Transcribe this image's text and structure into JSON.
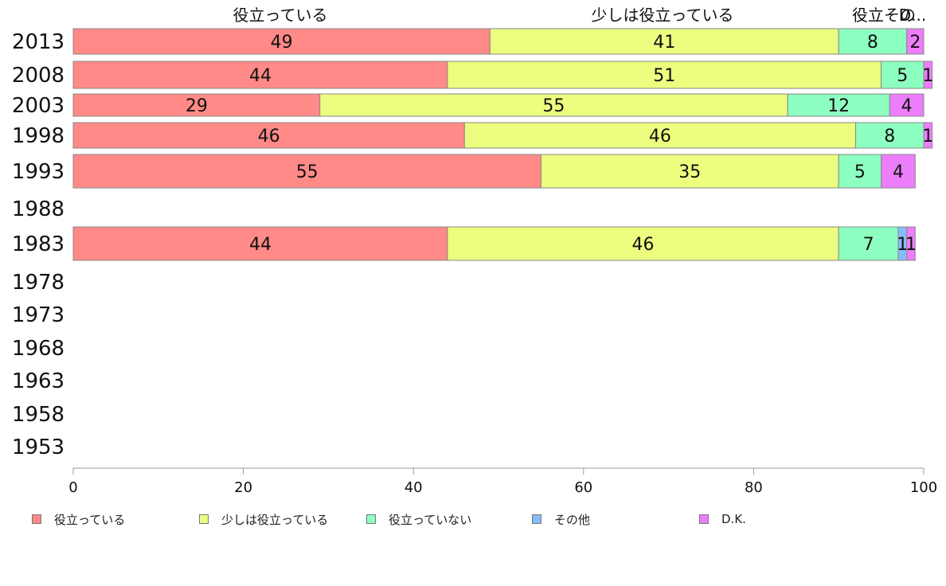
{
  "chart_data": {
    "type": "bar",
    "orientation": "horizontal",
    "stacked": true,
    "categories": [
      "2013",
      "2008",
      "2003",
      "1998",
      "1993",
      "1988",
      "1983",
      "1978",
      "1973",
      "1968",
      "1963",
      "1958",
      "1953"
    ],
    "series": [
      {
        "name": "役立っている",
        "color": "#ff8a87",
        "values": [
          49,
          44,
          29,
          46,
          55,
          null,
          44,
          null,
          null,
          null,
          null,
          null,
          null
        ]
      },
      {
        "name": "少しは役立っている",
        "color": "#ecfd7f",
        "values": [
          41,
          51,
          55,
          46,
          35,
          null,
          46,
          null,
          null,
          null,
          null,
          null,
          null
        ]
      },
      {
        "name": "役立っていない",
        "color": "#8dffc0",
        "values": [
          8,
          5,
          12,
          8,
          5,
          null,
          7,
          null,
          null,
          null,
          null,
          null,
          null
        ]
      },
      {
        "name": "その他",
        "color": "#87bcfb",
        "values": [
          0,
          0,
          0,
          0,
          0,
          null,
          1,
          null,
          null,
          null,
          null,
          null,
          null
        ]
      },
      {
        "name": "D.K.",
        "color": "#ec7dfb",
        "values": [
          2,
          1,
          4,
          1,
          4,
          null,
          1,
          null,
          null,
          null,
          null,
          null,
          null
        ]
      }
    ],
    "top_labels": [
      "役立っている",
      "少しは役立っている",
      "役立その",
      "D..."
    ],
    "xlim": [
      0,
      100
    ],
    "xticks": [
      0,
      20,
      40,
      60,
      80,
      100
    ],
    "legend_position": "bottom",
    "grid": false
  }
}
